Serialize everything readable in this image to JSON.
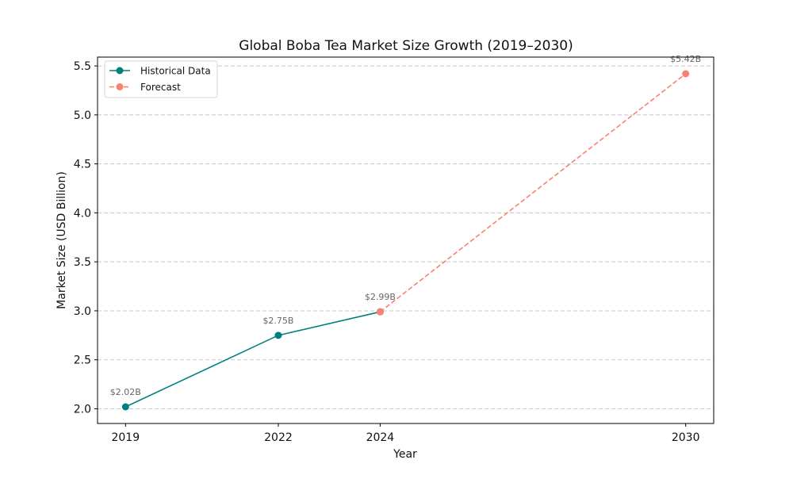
{
  "chart_data": {
    "type": "line",
    "title": "Global Boba Tea Market Size Growth (2019–2030)",
    "xlabel": "Year",
    "ylabel": "Market Size (USD Billion)",
    "xlim": [
      2018.45,
      2030.55
    ],
    "ylim": [
      1.85,
      5.59
    ],
    "x_ticks": [
      2019,
      2022,
      2024,
      2030
    ],
    "y_ticks": [
      2.0,
      2.5,
      3.0,
      3.5,
      4.0,
      4.5,
      5.0,
      5.5
    ],
    "y_tick_labels": [
      "2.0",
      "2.5",
      "3.0",
      "3.5",
      "4.0",
      "4.5",
      "5.0",
      "5.5"
    ],
    "x_tick_labels": [
      "2019",
      "2022",
      "2024",
      "2030"
    ],
    "grid": "y-dashed",
    "legend_position": "top-left",
    "series": [
      {
        "name": "Historical Data",
        "color": "#008080",
        "style": "solid",
        "x": [
          2019,
          2022,
          2024
        ],
        "values": [
          2.02,
          2.75,
          2.99
        ]
      },
      {
        "name": "Forecast",
        "color": "#FA8072",
        "style": "dashed",
        "x": [
          2024,
          2030
        ],
        "values": [
          2.99,
          5.42
        ]
      }
    ],
    "annotations": [
      {
        "x": 2019,
        "y": 2.02,
        "text": "$2.02B"
      },
      {
        "x": 2022,
        "y": 2.75,
        "text": "$2.75B"
      },
      {
        "x": 2024,
        "y": 2.99,
        "text": "$2.99B"
      },
      {
        "x": 2030,
        "y": 5.42,
        "text": "$5.42B"
      }
    ]
  }
}
